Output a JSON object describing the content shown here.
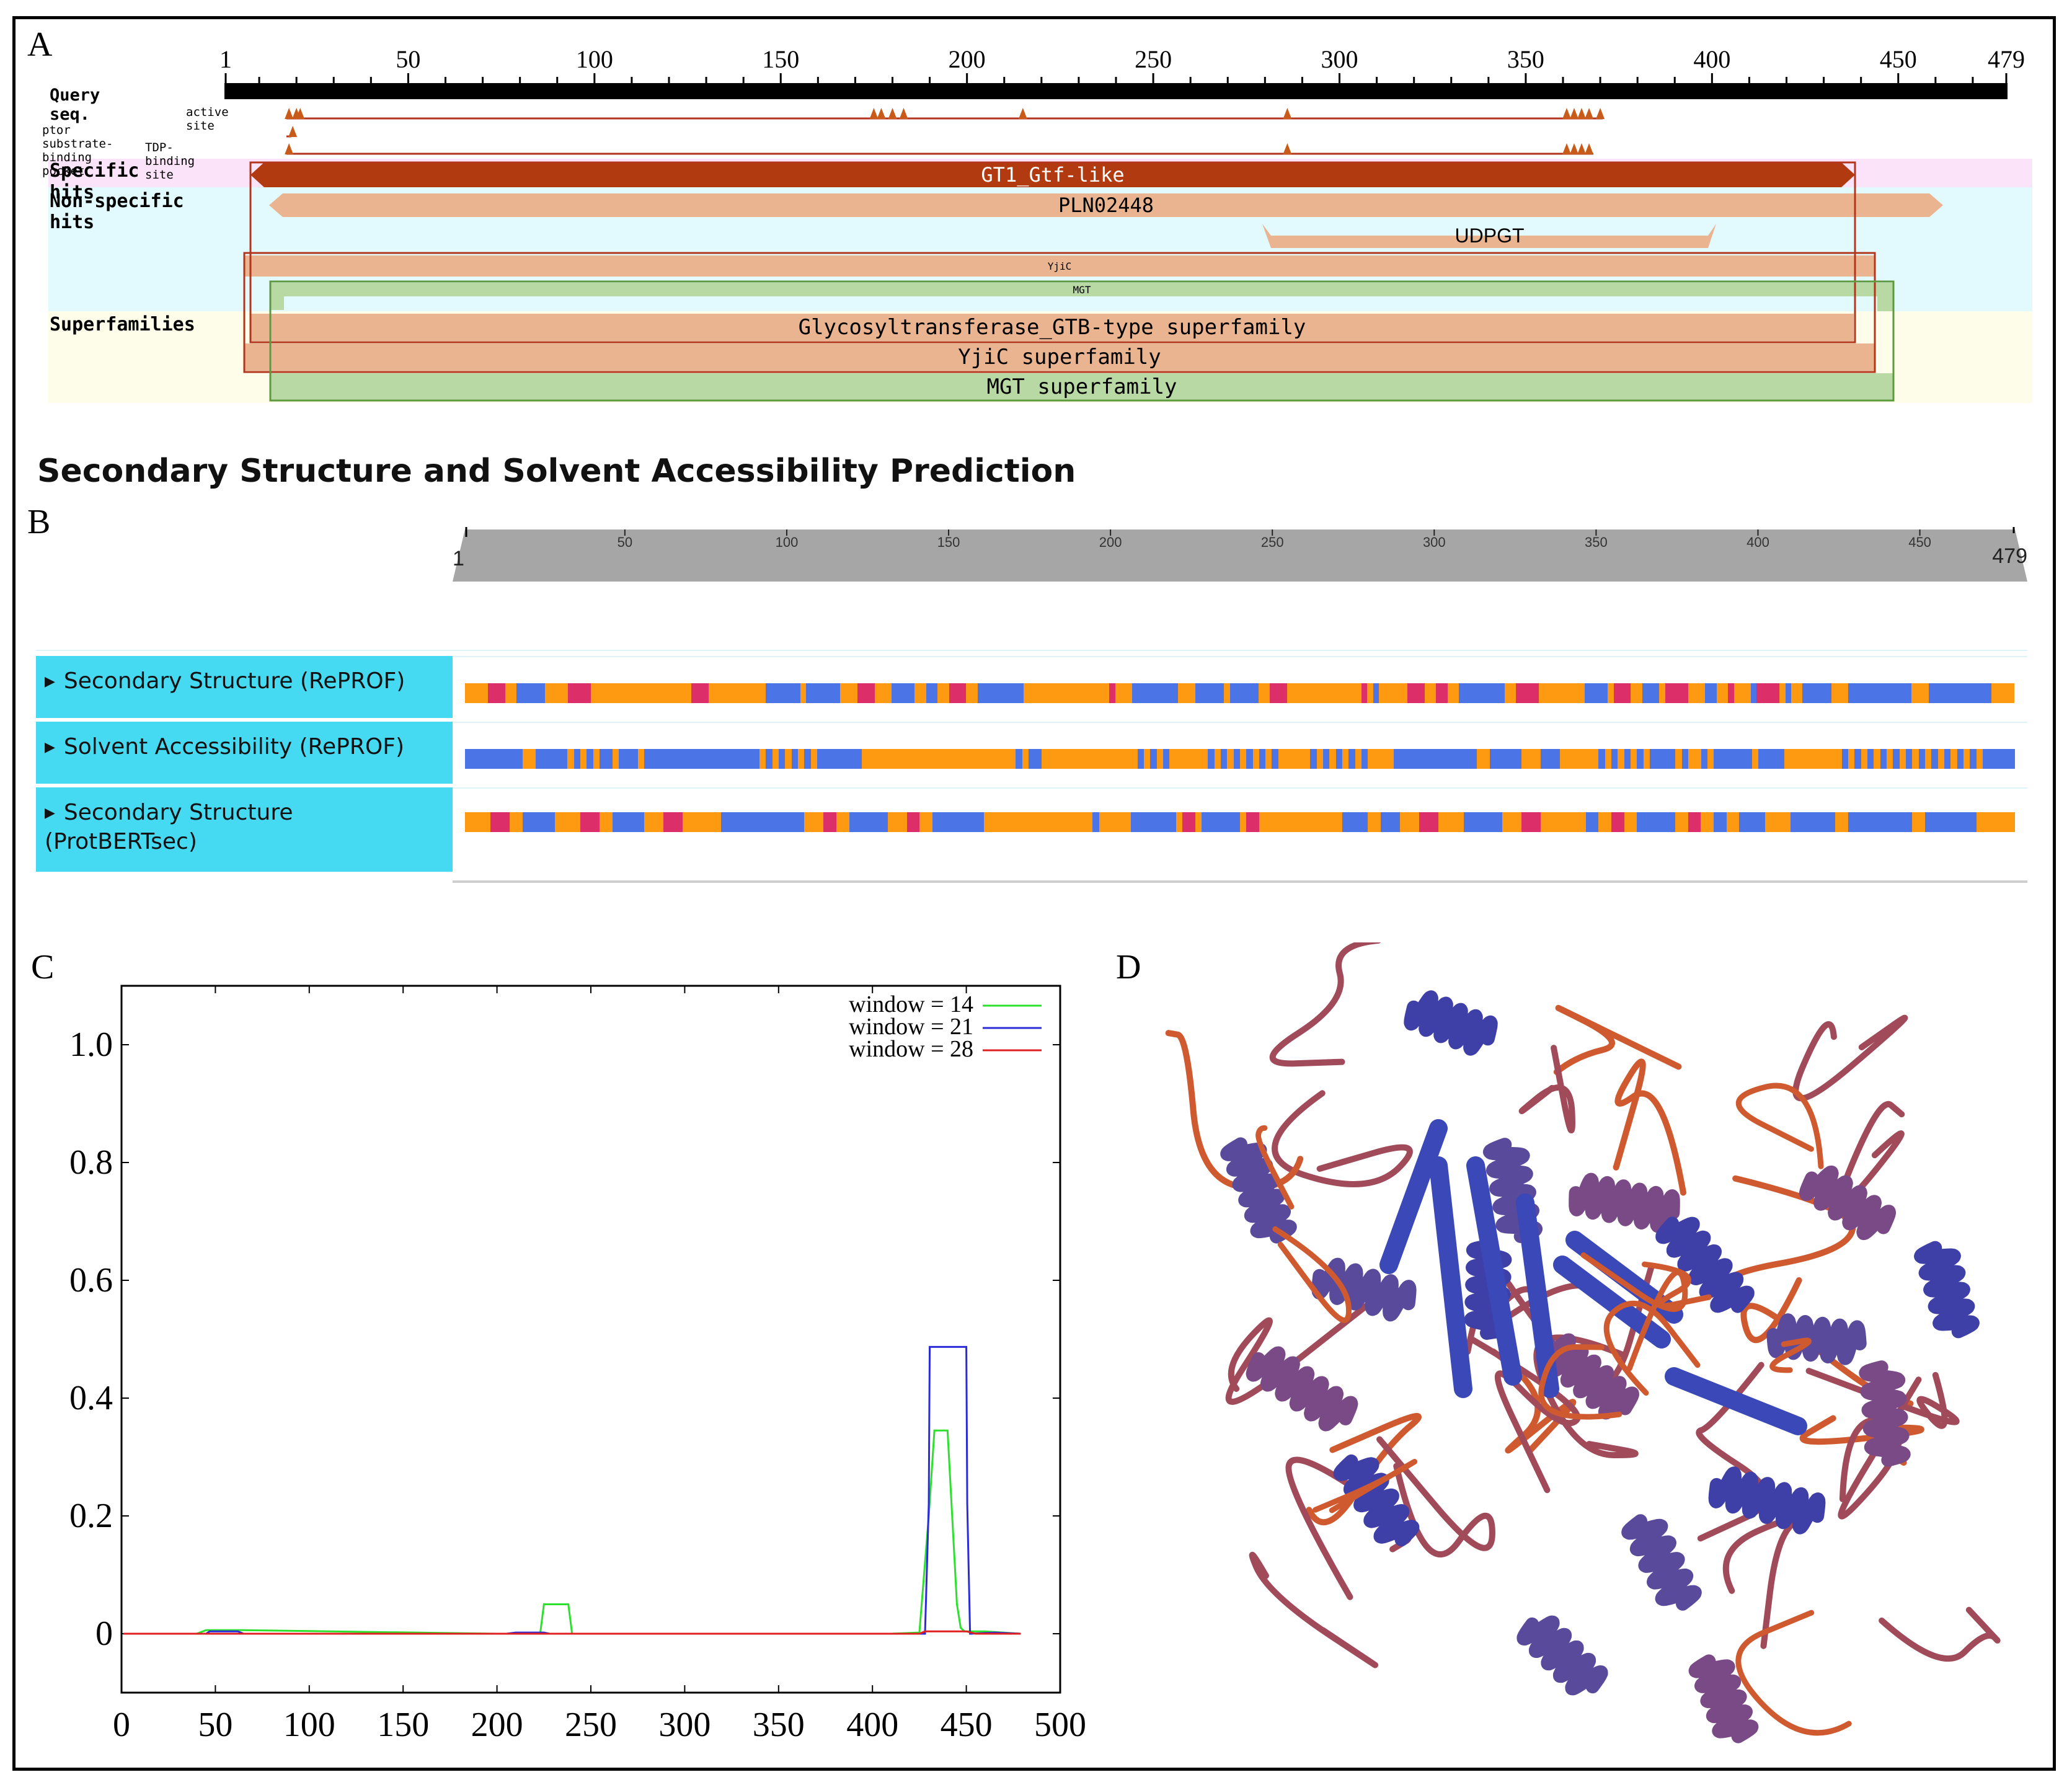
{
  "panel_labels": {
    "a": "A",
    "b": "B",
    "c": "C",
    "d": "D"
  },
  "panel_a": {
    "ruler_ticks": [
      "1",
      "50",
      "100",
      "150",
      "200",
      "250",
      "300",
      "350",
      "400",
      "450",
      "479"
    ],
    "query_label": "Query seq.",
    "feature_rows": [
      "active site",
      "ptor substrate-binding pocket",
      "TDP-binding site"
    ],
    "section_specific": "Specific hits",
    "section_nonspecific": "Non-specific\nhits",
    "section_superfamilies": "Superfamilies",
    "hits": {
      "gt1": "GT1_Gtf-like",
      "pln": "PLN02448",
      "udpgt": "UDPGT",
      "yjic": "YjiC",
      "mgt": "MGT",
      "sf_gtb": "Glycosyltransferase_GTB-type superfamily",
      "sf_yjic": "YjiC superfamily",
      "sf_mgt": "MGT superfamily"
    },
    "colors": {
      "specific": "#b23a10",
      "nonspecific": "#e9b48f",
      "mgt": "#b9d9a4",
      "pink_bg": "#fbe3f9",
      "cyan_bg": "#e2fafd",
      "yellow_bg": "#fefde9"
    }
  },
  "panel_b": {
    "title": "Secondary Structure and Solvent Accessibility Prediction",
    "ruler_ticks": [
      "50",
      "100",
      "150",
      "200",
      "250",
      "300",
      "350",
      "400",
      "450"
    ],
    "ruler_start": "1",
    "ruler_end": "479",
    "tracks": [
      {
        "label": "Secondary Structure (RePROF)"
      },
      {
        "label": "Solvent Accessibility (RePROF)"
      },
      {
        "label_line1": "Secondary Structure",
        "label_line2": "(ProtBERTsec)"
      }
    ],
    "colors": {
      "orange": "#fd9a12",
      "blue": "#4b74e6",
      "red": "#dc2f6a",
      "label_bg": "#45d9f2"
    }
  },
  "chart_data": {
    "type": "line",
    "title": "",
    "xlabel": "",
    "ylabel": "",
    "xlim": [
      0,
      500
    ],
    "ylim": [
      -0.1,
      1.1
    ],
    "xticks": [
      "0",
      "50",
      "100",
      "150",
      "200",
      "250",
      "300",
      "350",
      "400",
      "450",
      "500"
    ],
    "yticks": [
      "0",
      "0.2",
      "0.4",
      "0.6",
      "0.8",
      "1.0"
    ],
    "legend_position": "top-right",
    "series": [
      {
        "name": "window = 14",
        "color": "#2ee02e",
        "x": [
          1,
          40,
          45,
          65,
          200,
          223,
          225,
          238,
          240,
          290,
          300,
          410,
          425,
          430,
          433,
          440,
          445,
          447,
          449,
          460,
          479
        ],
        "y": [
          0,
          0,
          0.006,
          0.006,
          0,
          0,
          0.05,
          0.05,
          0,
          0,
          0,
          0,
          0.002,
          0.2,
          0.345,
          0.345,
          0.05,
          0.01,
          0.004,
          0.004,
          0
        ]
      },
      {
        "name": "window = 21",
        "color": "#2b2bd8",
        "x": [
          1,
          45,
          47,
          62,
          65,
          205,
          210,
          225,
          228,
          428,
          430,
          430.5,
          450,
          450.5,
          452,
          465,
          479
        ],
        "y": [
          0,
          0,
          0.004,
          0.004,
          0,
          0,
          0.002,
          0.002,
          0,
          0,
          0.22,
          0.487,
          0.487,
          0.22,
          0,
          0.002,
          0
        ]
      },
      {
        "name": "window = 28",
        "color": "#e02020",
        "x": [
          1,
          425,
          428,
          450,
          455,
          479
        ],
        "y": [
          0,
          0,
          0.004,
          0.004,
          0,
          0
        ]
      }
    ]
  },
  "panel_d": {
    "protein_colors": [
      "#3f3fa8",
      "#5a4a9c",
      "#7a4a86",
      "#a04a5a",
      "#d05a30"
    ]
  }
}
